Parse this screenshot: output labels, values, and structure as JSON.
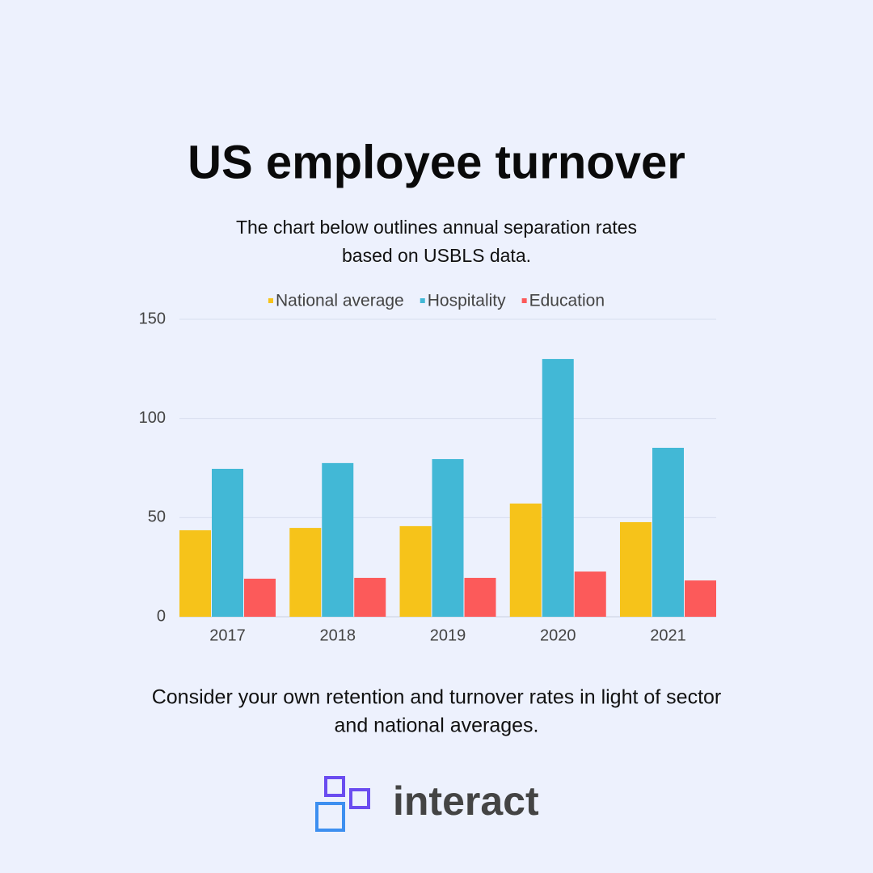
{
  "chart_data": {
    "type": "bar",
    "title": "US employee turnover",
    "subtitle": [
      "The chart below outlines annual separation rates",
      "based on USBLS data."
    ],
    "categories": [
      "2017",
      "2018",
      "2019",
      "2020",
      "2021"
    ],
    "series": [
      {
        "name": "National average",
        "color": "#f6c31a",
        "values": [
          43.6,
          44.8,
          45.7,
          57.1,
          47.7
        ]
      },
      {
        "name": "Hospitality",
        "color": "#42b8d6",
        "values": [
          74.6,
          77.5,
          79.5,
          130,
          85.2
        ]
      },
      {
        "name": "Education",
        "color": "#fc5a5a",
        "values": [
          19.2,
          19.6,
          19.6,
          22.8,
          18.3
        ]
      }
    ],
    "ylim": [
      0,
      150
    ],
    "yticks": [
      0,
      50,
      100,
      150
    ],
    "grid": true,
    "legend": "top"
  },
  "footer_note": [
    "Consider your own retention and turnover rates in light of sector",
    "and national averages."
  ],
  "brand": "interact"
}
